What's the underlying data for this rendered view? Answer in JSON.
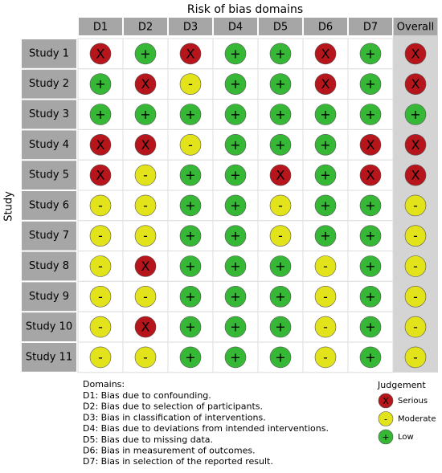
{
  "chart_data": {
    "type": "traffic-light",
    "title": "Risk of bias domains",
    "y_label": "Study",
    "columns": [
      "D1",
      "D2",
      "D3",
      "D4",
      "D5",
      "D6",
      "D7",
      "Overall"
    ],
    "rows": [
      "Study 1",
      "Study 2",
      "Study 3",
      "Study 4",
      "Study 5",
      "Study 6",
      "Study 7",
      "Study 8",
      "Study 9",
      "Study 10",
      "Study 11"
    ],
    "judgements": [
      [
        "Serious",
        "Low",
        "Serious",
        "Low",
        "Low",
        "Serious",
        "Low",
        "Serious"
      ],
      [
        "Low",
        "Serious",
        "Moderate",
        "Low",
        "Low",
        "Serious",
        "Low",
        "Serious"
      ],
      [
        "Low",
        "Low",
        "Low",
        "Low",
        "Low",
        "Low",
        "Low",
        "Low"
      ],
      [
        "Serious",
        "Serious",
        "Moderate",
        "Low",
        "Low",
        "Low",
        "Serious",
        "Serious"
      ],
      [
        "Serious",
        "Moderate",
        "Low",
        "Low",
        "Serious",
        "Low",
        "Serious",
        "Serious"
      ],
      [
        "Moderate",
        "Moderate",
        "Low",
        "Low",
        "Moderate",
        "Low",
        "Low",
        "Moderate"
      ],
      [
        "Moderate",
        "Moderate",
        "Low",
        "Low",
        "Moderate",
        "Low",
        "Low",
        "Moderate"
      ],
      [
        "Moderate",
        "Serious",
        "Low",
        "Low",
        "Low",
        "Moderate",
        "Low",
        "Moderate"
      ],
      [
        "Moderate",
        "Moderate",
        "Low",
        "Low",
        "Low",
        "Moderate",
        "Low",
        "Moderate"
      ],
      [
        "Moderate",
        "Serious",
        "Low",
        "Low",
        "Low",
        "Moderate",
        "Low",
        "Moderate"
      ],
      [
        "Moderate",
        "Moderate",
        "Low",
        "Low",
        "Low",
        "Moderate",
        "Low",
        "Moderate"
      ]
    ],
    "legend": {
      "title": "Judgement",
      "levels": [
        {
          "name": "Serious",
          "symbol": "X",
          "color": "#b5151b"
        },
        {
          "name": "Moderate",
          "symbol": "-",
          "color": "#e3e31b"
        },
        {
          "name": "Low",
          "symbol": "+",
          "color": "#36b736"
        }
      ]
    },
    "domains_title": "Domains:",
    "domains": [
      "D1: Bias due to confounding.",
      "D2: Bias due to selection of participants.",
      "D3: Bias in classification of interventions.",
      "D4: Bias due to deviations from intended interventions.",
      "D5: Bias due to missing data.",
      "D6: Bias in measurement of outcomes.",
      "D7: Bias in selection of the reported result."
    ]
  }
}
